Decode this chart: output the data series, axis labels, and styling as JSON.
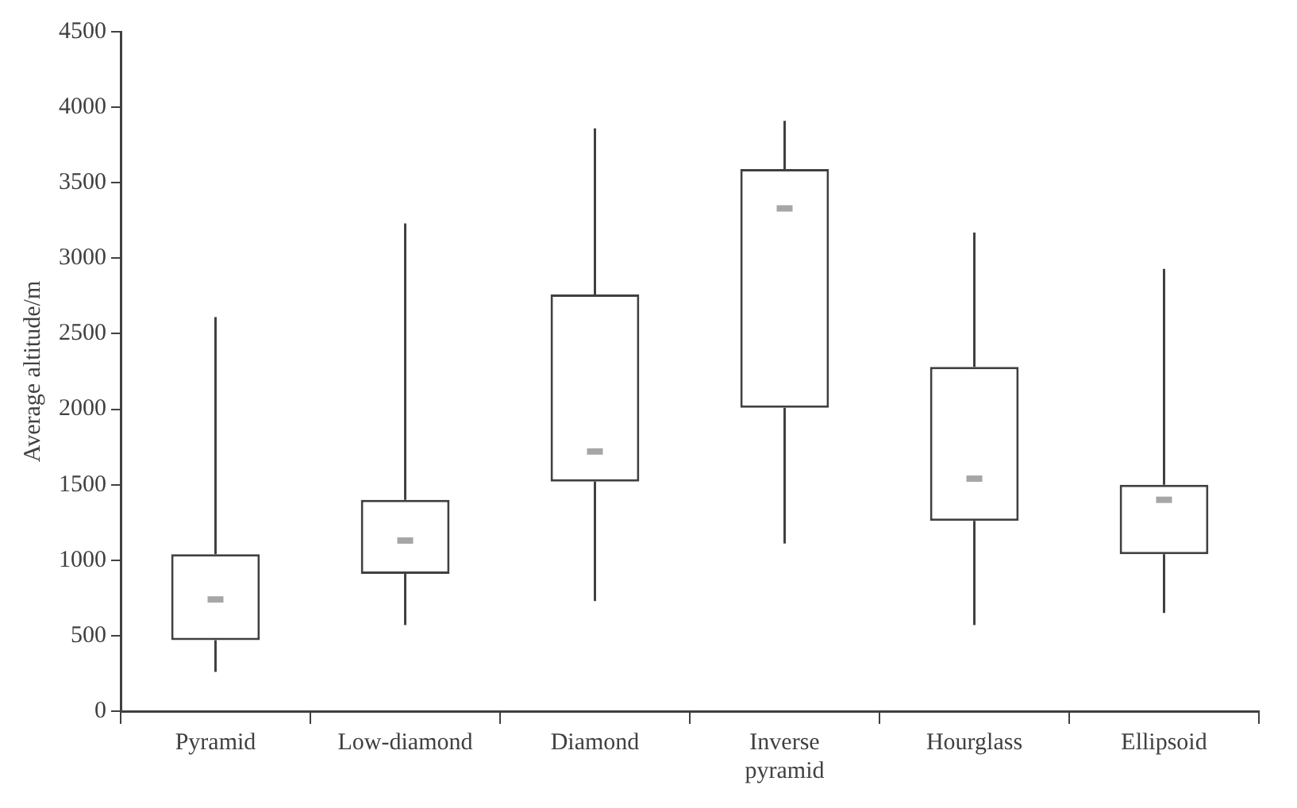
{
  "chart_data": {
    "type": "box",
    "ylabel": "Average altitude/m",
    "categories": [
      "Pyramid",
      "Low-diamond",
      "Diamond",
      "Inverse pyramid",
      "Hourglass",
      "Ellipsoid"
    ],
    "boxes": [
      {
        "low": 260,
        "q1": 470,
        "q3": 1040,
        "high": 2610
      },
      {
        "low": 570,
        "q1": 910,
        "q3": 1400,
        "high": 3230
      },
      {
        "low": 730,
        "q1": 1520,
        "q3": 2760,
        "high": 3860
      },
      {
        "low": 1110,
        "q1": 2010,
        "q3": 3590,
        "high": 3910
      },
      {
        "low": 570,
        "q1": 1260,
        "q3": 2280,
        "high": 3170
      },
      {
        "low": 650,
        "q1": 1040,
        "q3": 1500,
        "high": 2930
      }
    ],
    "color": "#404040",
    "series": [
      {
        "type": "scatter",
        "color": "#a6a6a6",
        "values": [
          740,
          1130,
          1720,
          3330,
          1540,
          1400
        ]
      }
    ],
    "ylim": [
      0,
      4500
    ],
    "yticks": [
      0,
      500,
      1000,
      1500,
      2000,
      2500,
      3000,
      3500,
      4000,
      4500
    ],
    "grid": false,
    "legend": false
  }
}
